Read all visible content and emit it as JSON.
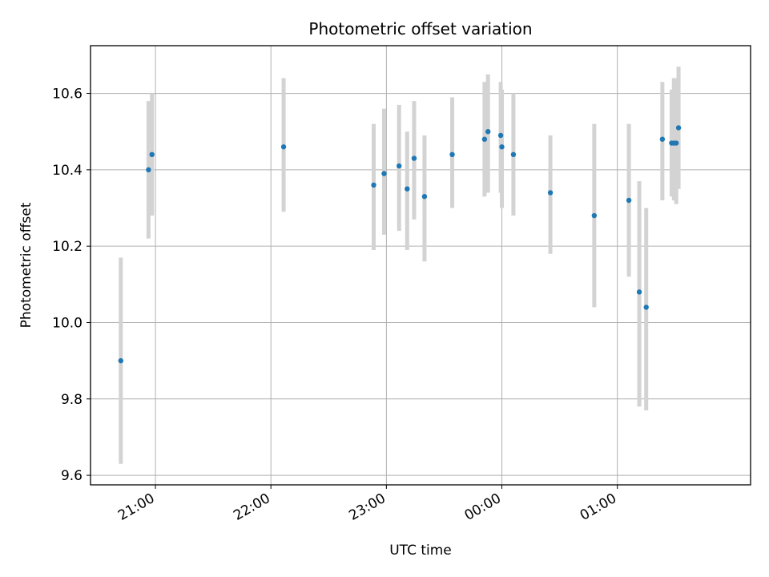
{
  "chart_data": {
    "type": "scatter",
    "title": "Photometric offset variation",
    "xlabel": "UTC time",
    "ylabel": "Photometric offset",
    "x_unit": "hours after 20:00 UTC (times past midnight continue counting)",
    "xlim": [
      0.4378,
      6.1538
    ],
    "ylim": [
      9.575,
      10.725
    ],
    "grid": true,
    "x_ticks": [
      {
        "value": 1.0,
        "label": "21:00"
      },
      {
        "value": 2.0,
        "label": "22:00"
      },
      {
        "value": 3.0,
        "label": "23:00"
      },
      {
        "value": 4.0,
        "label": "00:00"
      },
      {
        "value": 5.0,
        "label": "01:00"
      }
    ],
    "y_ticks": [
      {
        "value": 9.6,
        "label": "9.6"
      },
      {
        "value": 9.8,
        "label": "9.8"
      },
      {
        "value": 10.0,
        "label": "10.0"
      },
      {
        "value": 10.2,
        "label": "10.2"
      },
      {
        "value": 10.4,
        "label": "10.4"
      },
      {
        "value": 10.6,
        "label": "10.6"
      }
    ],
    "colors": {
      "point": "#1f77b4",
      "errorbar": "#d3d3d3",
      "grid": "#b0b0b0"
    },
    "points": [
      {
        "x": 0.7,
        "y": 9.9,
        "ylow": 9.63,
        "yhigh": 10.17
      },
      {
        "x": 0.94,
        "y": 10.4,
        "ylow": 10.22,
        "yhigh": 10.58
      },
      {
        "x": 0.97,
        "y": 10.44,
        "ylow": 10.28,
        "yhigh": 10.6
      },
      {
        "x": 2.11,
        "y": 10.46,
        "ylow": 10.29,
        "yhigh": 10.64
      },
      {
        "x": 2.89,
        "y": 10.36,
        "ylow": 10.19,
        "yhigh": 10.52
      },
      {
        "x": 2.98,
        "y": 10.39,
        "ylow": 10.23,
        "yhigh": 10.56
      },
      {
        "x": 3.11,
        "y": 10.41,
        "ylow": 10.24,
        "yhigh": 10.57
      },
      {
        "x": 3.18,
        "y": 10.35,
        "ylow": 10.19,
        "yhigh": 10.5
      },
      {
        "x": 3.24,
        "y": 10.43,
        "ylow": 10.27,
        "yhigh": 10.58
      },
      {
        "x": 3.33,
        "y": 10.33,
        "ylow": 10.16,
        "yhigh": 10.49
      },
      {
        "x": 3.57,
        "y": 10.44,
        "ylow": 10.3,
        "yhigh": 10.59
      },
      {
        "x": 3.85,
        "y": 10.48,
        "ylow": 10.33,
        "yhigh": 10.63
      },
      {
        "x": 3.88,
        "y": 10.5,
        "ylow": 10.34,
        "yhigh": 10.65
      },
      {
        "x": 3.99,
        "y": 10.49,
        "ylow": 10.34,
        "yhigh": 10.63
      },
      {
        "x": 4.0,
        "y": 10.46,
        "ylow": 10.3,
        "yhigh": 10.61
      },
      {
        "x": 4.1,
        "y": 10.44,
        "ylow": 10.28,
        "yhigh": 10.6
      },
      {
        "x": 4.42,
        "y": 10.34,
        "ylow": 10.18,
        "yhigh": 10.49
      },
      {
        "x": 4.8,
        "y": 10.28,
        "ylow": 10.04,
        "yhigh": 10.52
      },
      {
        "x": 5.1,
        "y": 10.32,
        "ylow": 10.12,
        "yhigh": 10.52
      },
      {
        "x": 5.19,
        "y": 10.08,
        "ylow": 9.78,
        "yhigh": 10.37
      },
      {
        "x": 5.25,
        "y": 10.04,
        "ylow": 9.77,
        "yhigh": 10.3
      },
      {
        "x": 5.39,
        "y": 10.48,
        "ylow": 10.32,
        "yhigh": 10.63
      },
      {
        "x": 5.47,
        "y": 10.47,
        "ylow": 10.33,
        "yhigh": 10.61
      },
      {
        "x": 5.49,
        "y": 10.47,
        "ylow": 10.32,
        "yhigh": 10.64
      },
      {
        "x": 5.51,
        "y": 10.47,
        "ylow": 10.31,
        "yhigh": 10.64
      },
      {
        "x": 5.53,
        "y": 10.51,
        "ylow": 10.35,
        "yhigh": 10.67
      }
    ]
  }
}
